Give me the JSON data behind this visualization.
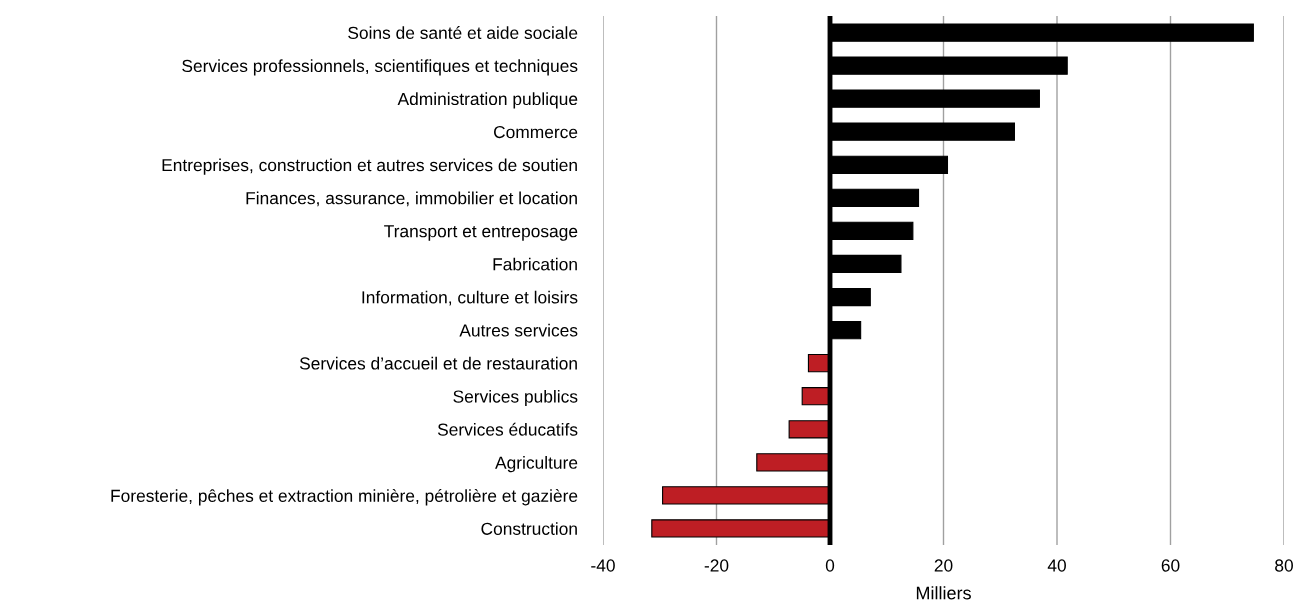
{
  "chart_data": {
    "type": "bar",
    "orientation": "horizontal",
    "xlabel": "Milliers",
    "categories": [
      "Soins de santé et aide sociale",
      "Services professionnels, scientifiques et techniques",
      "Administration publique",
      "Commerce",
      "Entreprises, construction et autres services de soutien",
      "Finances, assurance, immobilier et location",
      "Transport et entreposage",
      "Fabrication",
      "Information, culture et loisirs",
      "Autres services",
      "Services d’accueil et de restauration",
      "Services publics",
      "Services éducatifs",
      "Agriculture",
      "Foresterie, pêches et extraction minière, pétrolière et gazière",
      "Construction"
    ],
    "values": [
      74.6,
      41.8,
      36.9,
      32.5,
      20.7,
      15.6,
      14.6,
      12.5,
      7.1,
      5.4,
      -3.8,
      -4.9,
      -7.2,
      -12.9,
      -29.5,
      -31.4
    ],
    "colors": [
      "#000000",
      "#000000",
      "#000000",
      "#000000",
      "#000000",
      "#000000",
      "#000000",
      "#000000",
      "#000000",
      "#000000",
      "#be1e24",
      "#be1e24",
      "#be1e24",
      "#be1e24",
      "#be1e24",
      "#be1e24"
    ],
    "xlim": [
      -40,
      80
    ],
    "xticks": [
      -40,
      -20,
      0,
      20,
      40,
      60,
      80
    ],
    "grid": "x"
  }
}
